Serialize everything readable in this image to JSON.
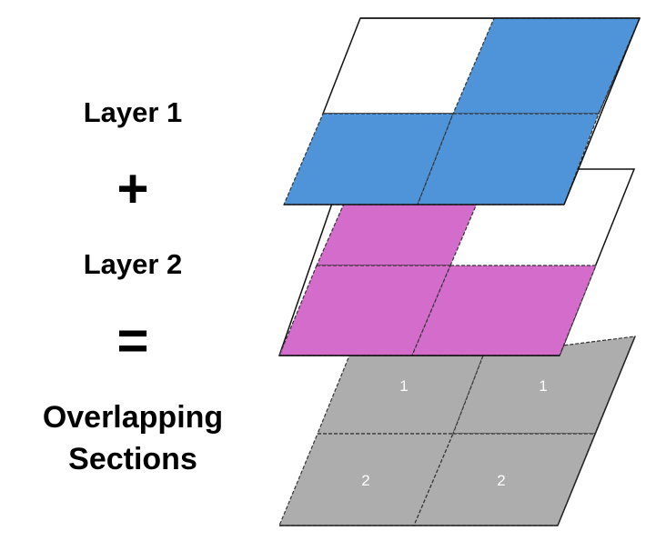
{
  "labels": {
    "layer1": "Layer 1",
    "plus": "+",
    "layer2": "Layer 2",
    "equals": "=",
    "result_line1": "Overlapping",
    "result_line2": "Sections"
  },
  "colors": {
    "layer1": "#4f94d9",
    "layer2": "#d46ccb",
    "result": "#adadad",
    "empty": "#ffffff"
  },
  "grids": {
    "layer1_filled": [
      "top-right",
      "bottom-left",
      "bottom-right"
    ],
    "layer2_filled": [
      "top-left",
      "bottom-left",
      "bottom-right"
    ],
    "result_counts": [
      "1",
      "1",
      "2",
      "2"
    ]
  }
}
